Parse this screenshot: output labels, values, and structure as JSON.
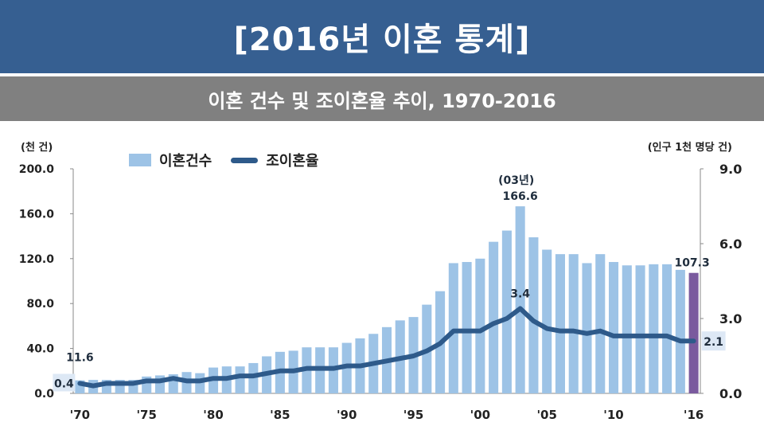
{
  "header": {
    "title": "[2016년 이혼 통계]",
    "subtitle": "이혼 건수 및 조이혼율 추이, 1970-2016"
  },
  "chart_data": {
    "type": "bar",
    "left_axis_unit": "(천 건)",
    "right_axis_unit": "(인구 1천 명당 건)",
    "ylim": [
      0,
      200
    ],
    "y_ticks": [
      "0.0",
      "40.0",
      "80.0",
      "120.0",
      "160.0",
      "200.0"
    ],
    "y2lim": [
      0,
      9
    ],
    "y2_ticks": [
      "0.0",
      "3.0",
      "6.0",
      "9.0"
    ],
    "x_tick_labels": [
      "'70",
      "'75",
      "'80",
      "'85",
      "'90",
      "'95",
      "'00",
      "'05",
      "'10",
      "'16"
    ],
    "x_tick_years": [
      1970,
      1975,
      1980,
      1985,
      1990,
      1995,
      2000,
      2005,
      2010,
      2016
    ],
    "years": [
      1970,
      1971,
      1972,
      1973,
      1974,
      1975,
      1976,
      1977,
      1978,
      1979,
      1980,
      1981,
      1982,
      1983,
      1984,
      1985,
      1986,
      1987,
      1988,
      1989,
      1990,
      1991,
      1992,
      1993,
      1994,
      1995,
      1996,
      1997,
      1998,
      1999,
      2000,
      2001,
      2002,
      2003,
      2004,
      2005,
      2006,
      2007,
      2008,
      2009,
      2010,
      2011,
      2012,
      2013,
      2014,
      2015,
      2016
    ],
    "series": [
      {
        "name": "이혼건수",
        "axis": "left",
        "values": [
          11.6,
          12,
          12,
          12,
          12,
          15,
          16,
          17,
          19,
          18,
          23,
          24,
          24,
          27,
          33,
          37,
          38,
          41,
          41,
          41,
          45,
          49,
          53,
          59,
          65,
          68,
          79,
          91,
          116,
          117,
          120,
          135,
          145,
          166.6,
          139,
          128,
          124,
          124,
          116,
          124,
          117,
          114,
          114,
          115,
          115,
          110,
          107.3
        ]
      },
      {
        "name": "조이혼율",
        "axis": "right",
        "values": [
          0.4,
          0.3,
          0.4,
          0.4,
          0.4,
          0.5,
          0.5,
          0.6,
          0.5,
          0.5,
          0.6,
          0.6,
          0.7,
          0.7,
          0.8,
          0.9,
          0.9,
          1.0,
          1.0,
          1.0,
          1.1,
          1.1,
          1.2,
          1.3,
          1.4,
          1.5,
          1.7,
          2.0,
          2.5,
          2.5,
          2.5,
          2.8,
          3.0,
          3.4,
          2.9,
          2.6,
          2.5,
          2.5,
          2.4,
          2.5,
          2.3,
          2.3,
          2.3,
          2.3,
          2.3,
          2.1,
          2.1
        ]
      }
    ],
    "highlight_last_bar_color": "#7a5a9e",
    "bar_color": "#9dc3e6",
    "line_color": "#2e5a8a",
    "annotations": [
      {
        "year": 1970,
        "series": "이혼건수",
        "text": "11.6"
      },
      {
        "year": 1970,
        "series": "조이혼율",
        "text": "0.4"
      },
      {
        "year": 2003,
        "series": "이혼건수",
        "text": "166.6",
        "note": "(03년)"
      },
      {
        "year": 2003,
        "series": "조이혼율",
        "text": "3.4"
      },
      {
        "year": 2016,
        "series": "이혼건수",
        "text": "107.3"
      },
      {
        "year": 2016,
        "series": "조이혼율",
        "text": "2.1"
      }
    ]
  }
}
